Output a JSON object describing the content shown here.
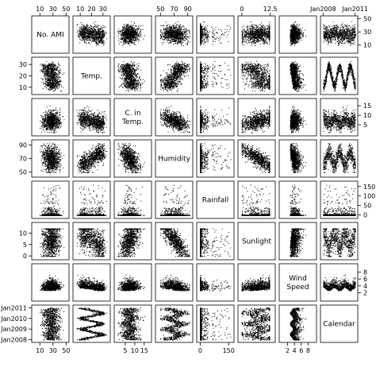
{
  "chart_data": {
    "type": "scatter",
    "plot_kind": "scatterplot-matrix",
    "variables": [
      {
        "id": "ami",
        "label_lines": [
          "No. AMI"
        ],
        "range": [
          0,
          52
        ],
        "ticks": [
          10,
          30,
          50
        ],
        "tick_labels": [
          "10",
          "30",
          "50"
        ]
      },
      {
        "id": "temp",
        "label_lines": [
          "Temp."
        ],
        "range": [
          5,
          35
        ],
        "ticks": [
          10,
          20,
          30
        ],
        "tick_labels": [
          "10",
          "20",
          "30"
        ]
      },
      {
        "id": "ctemp",
        "label_lines": [
          "C. in",
          "Temp."
        ],
        "range": [
          0,
          18
        ],
        "ticks": [
          5,
          10,
          15
        ],
        "tick_labels": [
          "5",
          "10",
          "15"
        ]
      },
      {
        "id": "humidity",
        "label_lines": [
          "Humidity"
        ],
        "range": [
          45,
          95
        ],
        "ticks": [
          50,
          70,
          90
        ],
        "tick_labels": [
          "50",
          "70",
          "90"
        ]
      },
      {
        "id": "rainfall",
        "label_lines": [
          "Rainfall"
        ],
        "range": [
          -10,
          170
        ],
        "ticks": [
          0,
          50,
          100,
          150
        ],
        "tick_labels": [
          "0",
          "50",
          "100",
          "150"
        ]
      },
      {
        "id": "sunlight",
        "label_lines": [
          "Sunlight"
        ],
        "range": [
          -1,
          14
        ],
        "ticks": [
          0,
          5,
          10,
          12.5
        ],
        "tick_labels": [
          "0",
          "5",
          "10",
          "12.5"
        ]
      },
      {
        "id": "wind",
        "label_lines": [
          "Wind",
          "Speed"
        ],
        "range": [
          0,
          10
        ],
        "ticks": [
          2,
          4,
          6,
          8
        ],
        "tick_labels": [
          "2",
          "4",
          "6",
          "8"
        ]
      },
      {
        "id": "calendar",
        "label_lines": [
          "Calendar"
        ],
        "range": [
          2007.9,
          2011.1
        ],
        "ticks": [
          2008,
          2009,
          2010,
          2011
        ],
        "tick_labels": [
          "Jan2008",
          "Jan2009",
          "Jan2010",
          "Jan2011"
        ]
      }
    ],
    "axis_labels_shown": {
      "top": {
        "0": [
          10,
          30,
          50
        ],
        "1": [
          10,
          20,
          30
        ],
        "3": [
          50,
          70,
          90
        ],
        "5": [
          0,
          12.5
        ],
        "7": [
          2008,
          2011
        ]
      },
      "bottom": {
        "0": [
          10,
          30,
          50
        ],
        "2": [
          5,
          10,
          15
        ],
        "4": [
          0,
          150
        ],
        "6": [
          2,
          4,
          6,
          8
        ]
      },
      "left": {
        "1": [
          10,
          20,
          30
        ],
        "3": [
          50,
          70,
          90
        ],
        "5": [
          0,
          5,
          10
        ],
        "7": [
          2008,
          2009,
          2010,
          2011
        ]
      },
      "right": {
        "0": [
          10,
          30,
          50
        ],
        "2": [
          5,
          10,
          15
        ],
        "4": [
          0,
          50,
          100,
          150
        ],
        "6": [
          2,
          4,
          6,
          8
        ]
      }
    },
    "n_points": 900,
    "point_color": "#000000",
    "grid": false,
    "legend": "none"
  }
}
